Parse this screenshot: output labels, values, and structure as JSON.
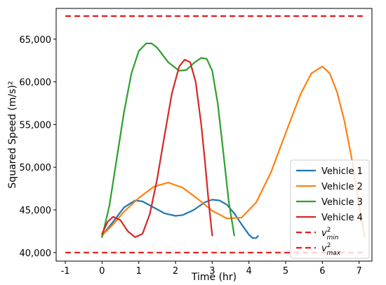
{
  "chart_data": {
    "type": "line",
    "xlabel": "Time (hr)",
    "ylabel": "Squared Speed (m/s)²",
    "xlim": [
      -1.25,
      7.35
    ],
    "ylim": [
      39000,
      68600
    ],
    "xticks": [
      -1,
      0,
      1,
      2,
      3,
      4,
      5,
      6,
      7
    ],
    "yticks": [
      40000,
      45000,
      50000,
      55000,
      60000,
      65000
    ],
    "ytick_labels": [
      "40,000",
      "45,000",
      "50,000",
      "55,000",
      "60,000",
      "65,000"
    ],
    "grid": false,
    "legend_position": "lower-right",
    "series": [
      {
        "name": "Vehicle 1",
        "color": "#1f77b4",
        "x": [
          0,
          0.3,
          0.6,
          0.9,
          1.1,
          1.4,
          1.7,
          2.0,
          2.2,
          2.5,
          2.8,
          3.0,
          3.2,
          3.4,
          3.6,
          3.8,
          4.0,
          4.1,
          4.2,
          4.25
        ],
        "y": [
          42000,
          43600,
          45300,
          46100,
          46000,
          45300,
          44600,
          44300,
          44400,
          45000,
          45900,
          46200,
          46100,
          45600,
          44600,
          43300,
          42100,
          41700,
          41700,
          41950
        ]
      },
      {
        "name": "Vehicle 2",
        "color": "#ff7f0e",
        "x": [
          0,
          0.3,
          0.6,
          1.0,
          1.4,
          1.8,
          2.2,
          2.6,
          3.0,
          3.4,
          3.8,
          4.2,
          4.6,
          5.0,
          5.4,
          5.7,
          6.0,
          6.2,
          6.4,
          6.6,
          6.8,
          7.0,
          7.15
        ],
        "y": [
          42000,
          43300,
          44800,
          46400,
          47700,
          48200,
          47600,
          46300,
          44900,
          44000,
          44100,
          45900,
          49400,
          54000,
          58500,
          61000,
          61800,
          61000,
          58800,
          55400,
          51000,
          45600,
          41900
        ]
      },
      {
        "name": "Vehicle 3",
        "color": "#2ca02c",
        "x": [
          0,
          0.2,
          0.4,
          0.6,
          0.8,
          1.0,
          1.2,
          1.35,
          1.5,
          1.8,
          2.1,
          2.3,
          2.5,
          2.7,
          2.85,
          3.0,
          3.15,
          3.3,
          3.45,
          3.6
        ],
        "y": [
          41800,
          45500,
          51000,
          56500,
          61000,
          63600,
          64500,
          64500,
          64000,
          62300,
          61300,
          61400,
          62200,
          62800,
          62700,
          61300,
          57500,
          51800,
          46000,
          42000
        ]
      },
      {
        "name": "Vehicle 4",
        "color": "#d62728",
        "x": [
          0,
          0.15,
          0.3,
          0.5,
          0.7,
          0.9,
          1.1,
          1.3,
          1.5,
          1.7,
          1.9,
          2.1,
          2.25,
          2.4,
          2.55,
          2.7,
          2.8,
          2.9,
          3.0
        ],
        "y": [
          42200,
          43600,
          44200,
          43800,
          42500,
          41800,
          42200,
          44500,
          48600,
          53700,
          58600,
          61800,
          62600,
          62300,
          60000,
          55000,
          50800,
          46000,
          42000
        ]
      },
      {
        "name": "v²_min",
        "label_base": "v",
        "label_sup": "2",
        "label_sub": "min",
        "color": "#e8191a",
        "style": "dashed",
        "x": [
          -1,
          7.1
        ],
        "y": [
          40000,
          40000
        ]
      },
      {
        "name": "v²_max",
        "label_base": "v",
        "label_sup": "2",
        "label_sub": "max",
        "color": "#e8191a",
        "style": "dashed",
        "x": [
          -1,
          7.1
        ],
        "y": [
          67700,
          67700
        ]
      }
    ]
  }
}
